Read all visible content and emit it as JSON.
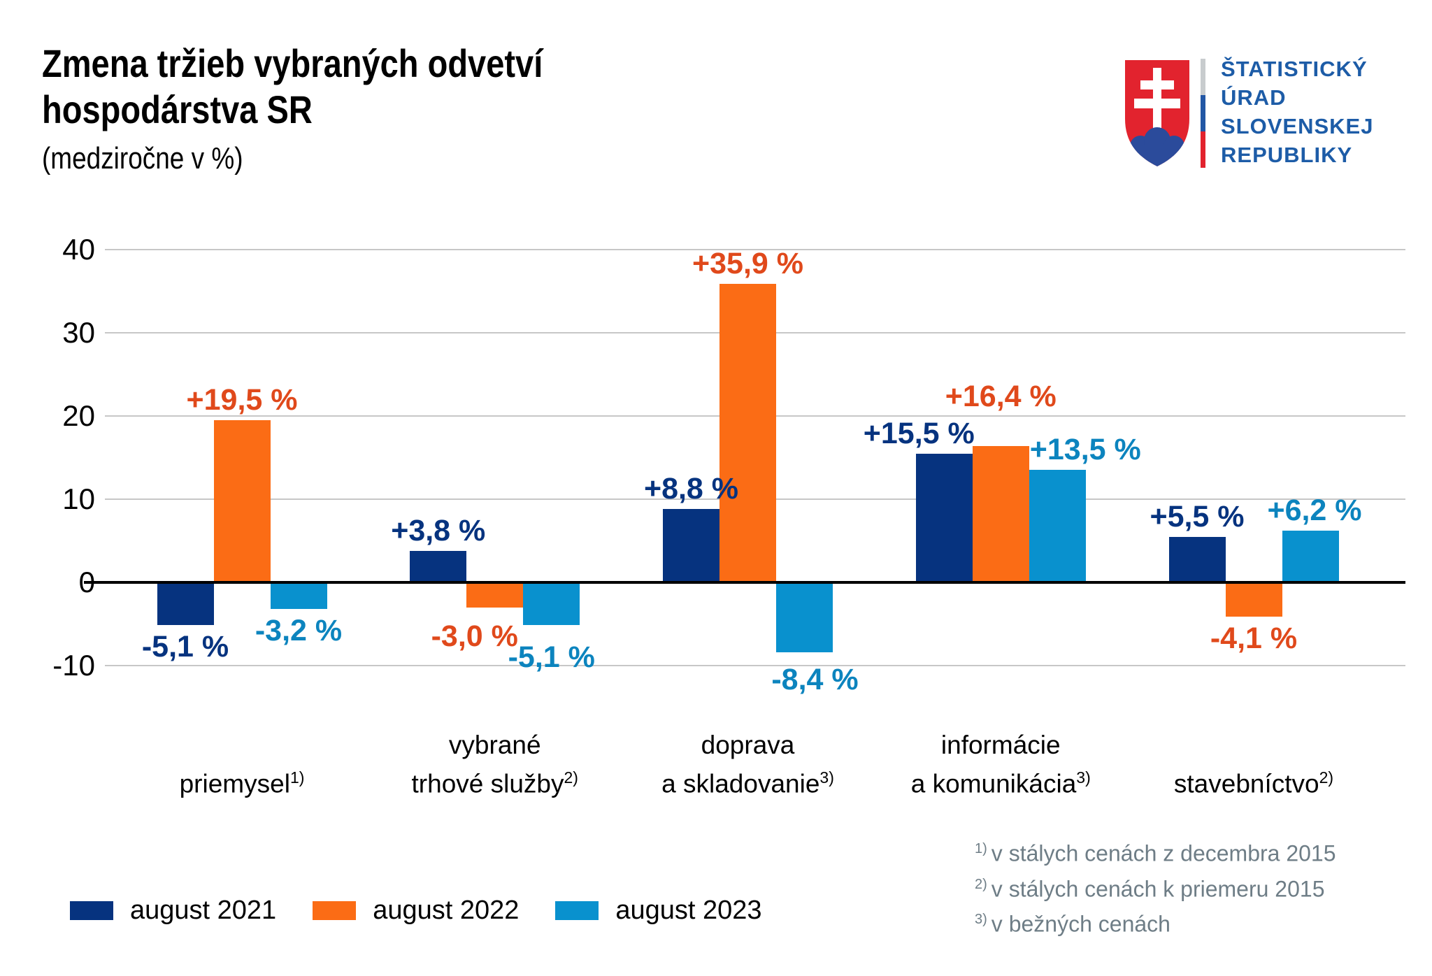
{
  "header": {
    "title_line1": "Zmena tržieb vybraných odvetví",
    "title_line2": "hospodárstva SR",
    "subtitle": "(medziročne v %)"
  },
  "logo": {
    "org_line1": "ŠTATISTICKÝ",
    "org_line2": "ÚRAD",
    "org_line3": "SLOVENSKEJ",
    "org_line4": "REPUBLIKY",
    "text_color": "#1D5CA7",
    "shield_red": "#E2232E",
    "shield_blue": "#2B4B9B",
    "divider_gray": "#C8CCCE",
    "divider_blue": "#2257A5",
    "divider_red": "#E2232E"
  },
  "chart_data": {
    "type": "bar",
    "title": "Zmena tržieb vybraných odvetví hospodárstva SR (medziročne v %)",
    "unit": "%",
    "categories": [
      {
        "line1": "",
        "line2": "priemysel",
        "footnote": "1)"
      },
      {
        "line1": "vybrané",
        "line2": "trhové služby",
        "footnote": "2)"
      },
      {
        "line1": "doprava",
        "line2": "a skladovanie",
        "footnote": "3)"
      },
      {
        "line1": "informácie",
        "line2": "a komunikácia",
        "footnote": "3)"
      },
      {
        "line1": "",
        "line2": "stavebníctvo",
        "footnote": "2)"
      }
    ],
    "series": [
      {
        "name": "august 2021",
        "color": "#06337F",
        "label_color": "#06337F",
        "values": [
          -5.1,
          3.8,
          8.8,
          15.5,
          5.5
        ],
        "labels": [
          "-5,1 %",
          "+3,8 %",
          "+8,8 %",
          "+15,5 %",
          "+5,5 %"
        ]
      },
      {
        "name": "august 2022",
        "color": "#FB6C15",
        "label_color": "#E0491B",
        "values": [
          19.5,
          -3.0,
          35.9,
          16.4,
          -4.1
        ],
        "labels": [
          "+19,5 %",
          "-3,0 %",
          "+35,9 %",
          "+16,4 %",
          "-4,1 %"
        ]
      },
      {
        "name": "august 2023",
        "color": "#0991CE",
        "label_color": "#0C84BE",
        "values": [
          -3.2,
          -5.1,
          -8.4,
          13.5,
          6.2
        ],
        "labels": [
          "-3,2 %",
          "-5,1 %",
          "-8,4 %",
          "+13,5 %",
          "+6,2 %"
        ]
      }
    ],
    "y_ticks": [
      40,
      30,
      20,
      10,
      0,
      -10
    ],
    "ylim": [
      -14,
      42
    ],
    "grid": true,
    "legend_position": "bottom-left"
  },
  "footnotes": [
    {
      "mark": "1)",
      "text": "v stálych cenách z decembra 2015"
    },
    {
      "mark": "2)",
      "text": "v stálych cenách k priemeru 2015"
    },
    {
      "mark": "3)",
      "text": "v bežných cenách"
    }
  ]
}
